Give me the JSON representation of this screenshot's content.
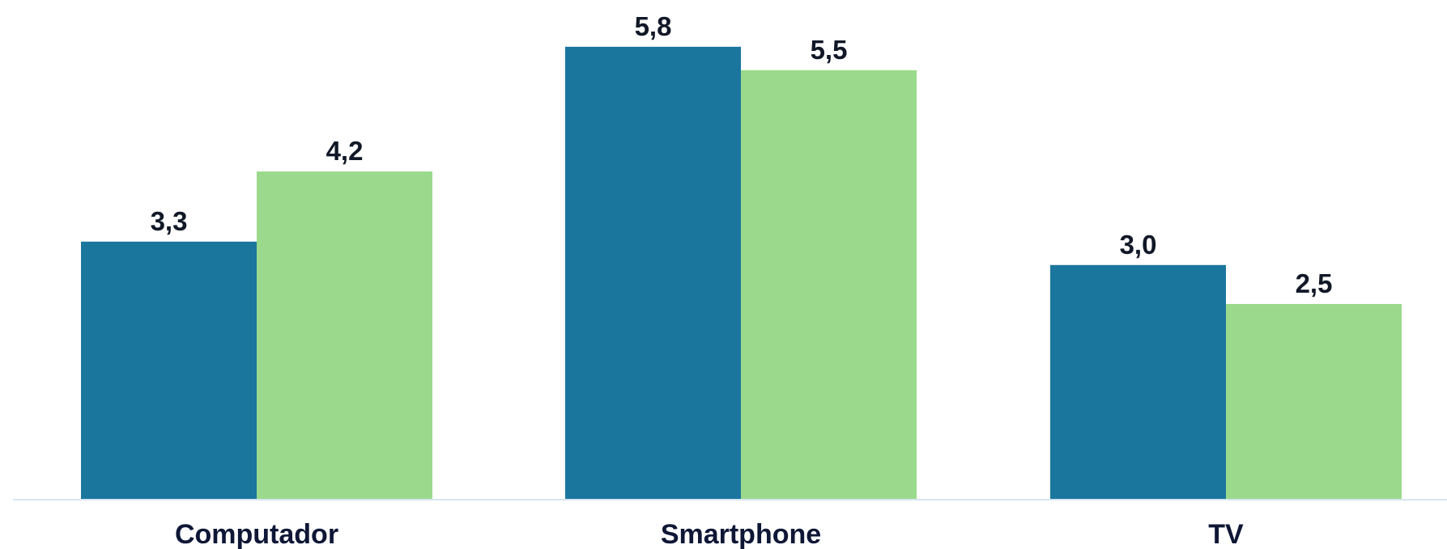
{
  "chart_data": {
    "type": "bar",
    "categories": [
      "Computador",
      "Smartphone",
      "TV"
    ],
    "series": [
      {
        "values": [
          3.3,
          5.8,
          3.0
        ],
        "labels": [
          "3,3",
          "5,8",
          "3,0"
        ],
        "color": "#1b769e"
      },
      {
        "values": [
          4.2,
          5.5,
          2.5
        ],
        "labels": [
          "4,2",
          "5,5",
          "2,5"
        ],
        "color": "#9bda8c"
      }
    ],
    "title": "",
    "xlabel": "",
    "ylabel": "",
    "ylim": [
      0,
      6.4
    ],
    "grid": false,
    "legend": "none",
    "baseline_color": "#d6e6f2"
  }
}
